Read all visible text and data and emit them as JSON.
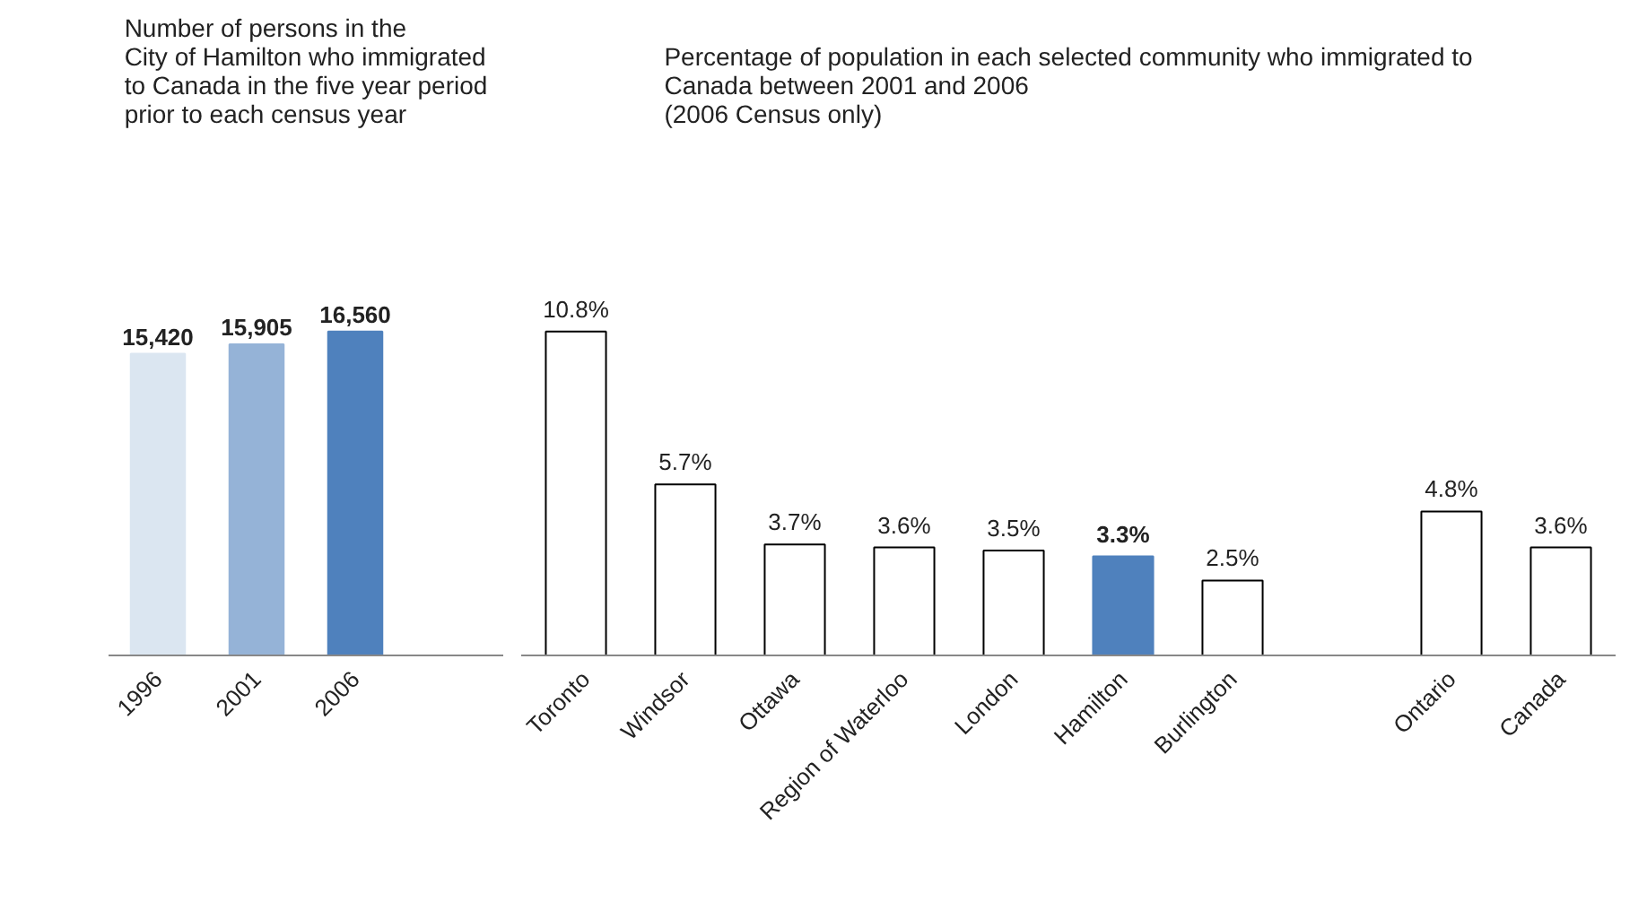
{
  "chart_data": [
    {
      "type": "bar",
      "title": "Number of persons in the\nCity of Hamilton who immigrated\nto Canada in the five year period\nprior to each census year",
      "categories": [
        "1996",
        "2001",
        "2006",
        null
      ],
      "values": [
        15420,
        15905,
        16560,
        null
      ],
      "colors": [
        "#dbe6f1",
        "#95b3d7",
        "#4f81bd",
        "#ffffff"
      ],
      "value_labels": [
        "15,420",
        "15,905",
        "16,560",
        null
      ]
    },
    {
      "type": "bar",
      "title": "Percentage of population in each selected community who immigrated to\nCanada between 2001 and 2006\n(2006 Census only)",
      "categories": [
        "Toronto",
        "Windsor",
        "Ottawa",
        "Region of Waterloo",
        "London",
        "Hamilton",
        "Burlington",
        null,
        "Ontario",
        "Canada"
      ],
      "values": [
        10.8,
        5.7,
        3.7,
        3.6,
        3.5,
        3.3,
        2.5,
        null,
        4.8,
        3.6
      ],
      "colors": [
        "#ffffff",
        "#ffffff",
        "#ffffff",
        "#ffffff",
        "#ffffff",
        "#4f81bd",
        "#ffffff",
        "#ffffff",
        "#ffffff",
        "#ffffff"
      ],
      "value_labels": [
        "10.8%",
        "5.7%",
        "3.7%",
        "3.6%",
        "3.5%",
        "3.3%",
        "2.5%",
        null,
        "4.8%",
        "3.6%"
      ]
    }
  ]
}
